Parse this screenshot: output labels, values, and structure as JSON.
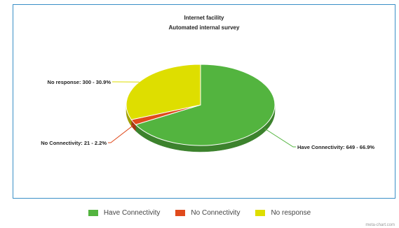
{
  "chart_data": {
    "type": "pie",
    "title": "Internet facility",
    "subtitle": "Automated internal survey",
    "categories": [
      "Have Connectivity",
      "No Connectivity",
      "No response"
    ],
    "values": [
      649,
      21,
      300
    ],
    "percentages": [
      66.9,
      2.2,
      30.9
    ],
    "data_labels": [
      "Have Connectivity: 649 - 66.9%",
      "No Connectivity: 21 - 2.2%",
      "No response: 300 - 30.9%"
    ],
    "colors": [
      "#53b43f",
      "#e04a1c",
      "#dede00"
    ],
    "legend_position": "bottom",
    "style": "3d"
  },
  "legend": {
    "items": [
      {
        "label": "Have Connectivity",
        "color": "#53b43f"
      },
      {
        "label": "No Connectivity",
        "color": "#e04a1c"
      },
      {
        "label": "No response",
        "color": "#dede00"
      }
    ]
  },
  "credit": "meta-chart.com"
}
